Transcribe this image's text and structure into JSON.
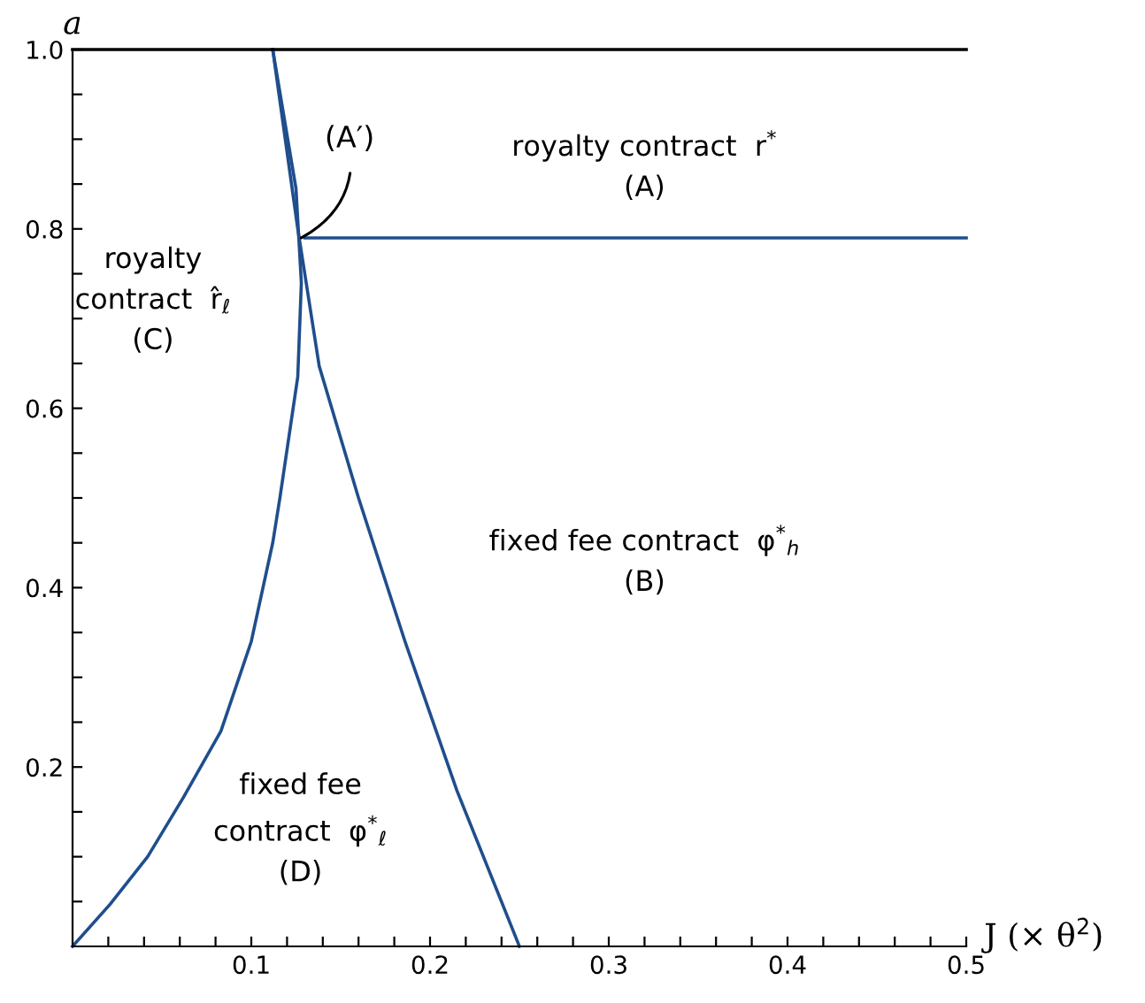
{
  "chart_data": {
    "type": "line",
    "xlabel": "J (× θ$^{2}$)",
    "ylabel": "a",
    "xlim": [
      0,
      0.5
    ],
    "ylim": [
      0,
      1.0
    ],
    "xticks": [
      {
        "value": 0.02,
        "label": null
      },
      {
        "value": 0.04,
        "label": null
      },
      {
        "value": 0.06,
        "label": null
      },
      {
        "value": 0.08,
        "label": null
      },
      0.1,
      {
        "value": 0.12,
        "label": null
      },
      {
        "value": 0.14,
        "label": null
      },
      {
        "value": 0.16,
        "label": null
      },
      {
        "value": 0.18,
        "label": null
      },
      0.2,
      {
        "value": 0.22,
        "label": null
      },
      {
        "value": 0.24,
        "label": null
      },
      {
        "value": 0.26,
        "label": null
      },
      {
        "value": 0.28,
        "label": null
      },
      0.3,
      {
        "value": 0.32,
        "label": null
      },
      {
        "value": 0.34,
        "label": null
      },
      {
        "value": 0.36,
        "label": null
      },
      {
        "value": 0.38,
        "label": null
      },
      0.4,
      {
        "value": 0.42,
        "label": null
      },
      {
        "value": 0.44,
        "label": null
      },
      {
        "value": 0.46,
        "label": null
      },
      {
        "value": 0.48,
        "label": null
      },
      0.5
    ],
    "yticks": [
      {
        "value": 0.05,
        "label": null
      },
      {
        "value": 0.1,
        "label": null
      },
      {
        "value": 0.15,
        "label": null
      },
      0.2,
      {
        "value": 0.25,
        "label": null
      },
      {
        "value": 0.3,
        "label": null
      },
      {
        "value": 0.35,
        "label": null
      },
      0.4,
      {
        "value": 0.45,
        "label": null
      },
      {
        "value": 0.5,
        "label": null
      },
      {
        "value": 0.55,
        "label": null
      },
      0.6,
      {
        "value": 0.65,
        "label": null
      },
      {
        "value": 0.7,
        "label": null
      },
      {
        "value": 0.75,
        "label": null
      },
      0.8,
      {
        "value": 0.85,
        "label": null
      },
      {
        "value": 0.9,
        "label": null
      },
      {
        "value": 0.95,
        "label": null
      },
      {
        "value": 1.0,
        "label": "1.0"
      }
    ],
    "grid": false,
    "legend": false,
    "marker": "none",
    "line_style": "solid",
    "series": [
      {
        "color": "#1f4e8c",
        "x": [
          0,
          0.021,
          0.042,
          0.062,
          0.083,
          0.1,
          0.112,
          0.116,
          0.126,
          0.128,
          0.125,
          0.112
        ],
        "values": [
          0,
          0.047,
          0.1,
          0.166,
          0.24,
          0.34,
          0.45,
          0.5,
          0.635,
          0.74,
          0.845,
          1.0
        ]
      },
      {
        "color": "#1f4e8c",
        "x": [
          0.112,
          0.126,
          0.138,
          0.16,
          0.186,
          0.215,
          0.25
        ],
        "values": [
          1.0,
          0.8,
          0.647,
          0.5,
          0.34,
          0.174,
          0
        ]
      },
      {
        "color": "#1f4e8c",
        "x": [
          0.13,
          0.5
        ],
        "values": [
          0.79,
          0.79
        ]
      }
    ],
    "ref_lines": [
      {
        "axis": "y",
        "value": 1.0,
        "color": "#000000",
        "line_style": "solid"
      }
    ],
    "annotations": [
      {
        "text": "(A′)",
        "x": 0.128,
        "y": 0.79
      },
      "royalty contract  r$^{*}$\n(A)",
      "royalty\ncontract  r̂$_{ℓ}$\n(C)",
      "fixed fee contract  φ$^{*}$$_{h}$\n(B)",
      "fixed fee\ncontract  φ$^{*}$$_{ℓ}$\n(D)"
    ]
  }
}
